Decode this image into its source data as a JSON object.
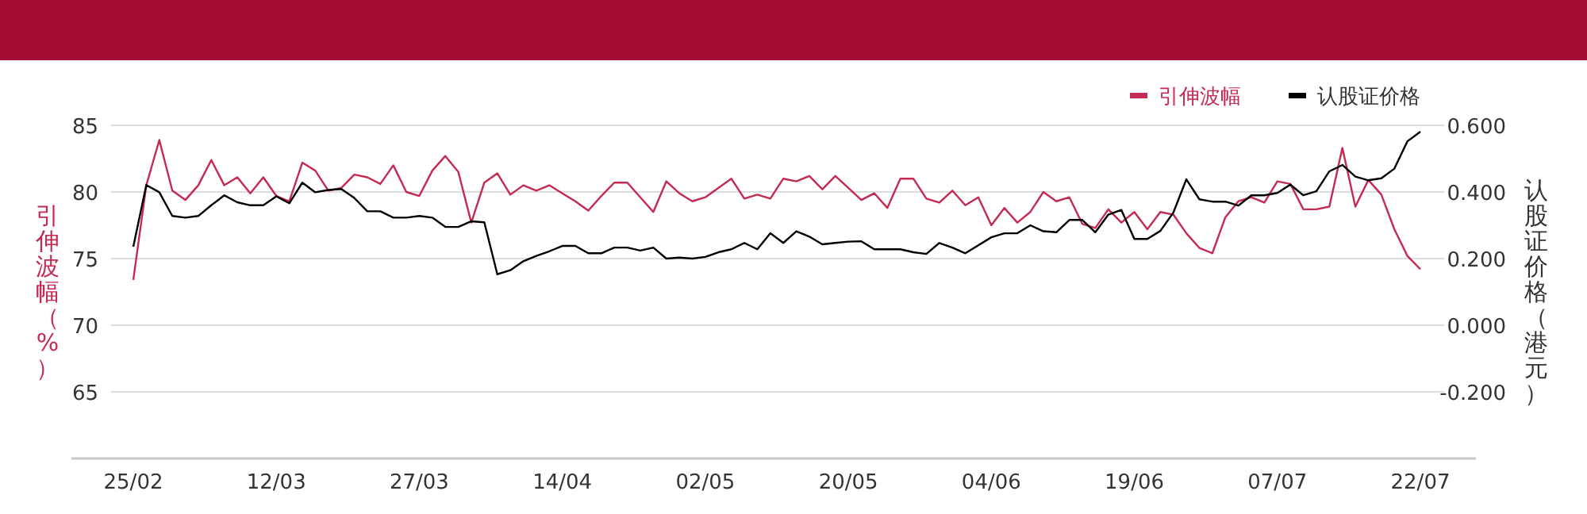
{
  "chart_data": {
    "type": "line",
    "categories": [
      "25/02",
      null,
      null,
      null,
      null,
      null,
      null,
      null,
      null,
      null,
      null,
      "12/03",
      null,
      null,
      null,
      null,
      null,
      null,
      null,
      null,
      null,
      null,
      "27/03",
      null,
      null,
      null,
      null,
      null,
      null,
      null,
      null,
      null,
      null,
      "14/04",
      null,
      null,
      null,
      null,
      null,
      null,
      null,
      null,
      null,
      null,
      "02/05",
      null,
      null,
      null,
      null,
      null,
      null,
      null,
      null,
      null,
      null,
      "20/05",
      null,
      null,
      null,
      null,
      null,
      null,
      null,
      null,
      null,
      null,
      "04/06",
      null,
      null,
      null,
      null,
      null,
      null,
      null,
      null,
      null,
      null,
      "19/06",
      null,
      null,
      null,
      null,
      null,
      null,
      null,
      null,
      null,
      null,
      "07/07",
      null,
      null,
      null,
      null,
      null,
      null,
      null,
      null,
      null,
      null,
      "22/07"
    ],
    "series": [
      {
        "name": "引伸波幅",
        "color": "#c42a52",
        "values": [
          73.4,
          80.5,
          83.9,
          80.1,
          79.4,
          80.5,
          82.4,
          80.5,
          81.1,
          79.9,
          81.1,
          79.7,
          79.3,
          82.2,
          81.6,
          80.1,
          80.3,
          81.3,
          81.1,
          80.6,
          82.0,
          80.0,
          79.7,
          81.6,
          82.7,
          81.5,
          77.7,
          80.7,
          81.4,
          79.8,
          80.5,
          80.1,
          80.5,
          79.9,
          79.3,
          78.6,
          79.7,
          80.7,
          80.7,
          79.6,
          78.5,
          80.8,
          79.9,
          79.3,
          79.6,
          80.3,
          81.0,
          79.5,
          79.8,
          79.5,
          81.0,
          80.8,
          81.2,
          80.2,
          81.2,
          80.3,
          79.4,
          79.9,
          78.8,
          81.0,
          81.0,
          79.5,
          79.2,
          80.1,
          79.0,
          79.6,
          77.5,
          78.8,
          77.7,
          78.5,
          80.0,
          79.3,
          79.6,
          77.6,
          77.3,
          78.7,
          77.7,
          78.5,
          77.2,
          78.5,
          78.3,
          76.9,
          75.8,
          75.4,
          78.1,
          79.3,
          79.6,
          79.2,
          80.8,
          80.6,
          78.7,
          78.7,
          78.9,
          83.3,
          78.9,
          80.9,
          79.8,
          77.2,
          75.2,
          74.2
        ]
      },
      {
        "name": "认股证价格",
        "color": "#000000",
        "axis": "y2",
        "values": [
          0.236,
          0.421,
          0.399,
          0.328,
          0.323,
          0.328,
          0.36,
          0.39,
          0.369,
          0.36,
          0.36,
          0.387,
          0.366,
          0.428,
          0.399,
          0.406,
          0.409,
          0.382,
          0.342,
          0.342,
          0.323,
          0.323,
          0.328,
          0.323,
          0.295,
          0.295,
          0.312,
          0.309,
          0.153,
          0.165,
          0.192,
          0.208,
          0.222,
          0.238,
          0.238,
          0.216,
          0.216,
          0.233,
          0.233,
          0.224,
          0.233,
          0.2,
          0.203,
          0.2,
          0.205,
          0.219,
          0.228,
          0.247,
          0.228,
          0.276,
          0.247,
          0.282,
          0.266,
          0.243,
          0.247,
          0.251,
          0.252,
          0.228,
          0.228,
          0.228,
          0.219,
          0.214,
          0.247,
          0.233,
          0.216,
          0.24,
          0.264,
          0.276,
          0.276,
          0.3,
          0.282,
          0.279,
          0.316,
          0.316,
          0.279,
          0.332,
          0.346,
          0.259,
          0.259,
          0.283,
          0.338,
          0.438,
          0.378,
          0.371,
          0.371,
          0.359,
          0.39,
          0.39,
          0.397,
          0.422,
          0.39,
          0.402,
          0.462,
          0.481,
          0.446,
          0.435,
          0.441,
          0.47,
          0.552,
          0.581
        ]
      }
    ],
    "ylabel": "引伸波幅（%）",
    "y2label": "认股证价格（港元）",
    "ylim": [
      60,
      85
    ],
    "yticks": [
      65,
      70,
      75,
      80,
      85
    ],
    "y2lim": [
      -0.4,
      0.6
    ],
    "y2ticks": [
      {
        "value": -0.2,
        "label": "-0.200"
      },
      {
        "value": 0,
        "label": "0.000"
      },
      {
        "value": 0.2,
        "label": "0.200"
      },
      {
        "value": 0.4,
        "label": "0.400"
      },
      {
        "value": 0.6,
        "label": "0.600"
      }
    ],
    "grid": "y",
    "legend": "top right"
  }
}
